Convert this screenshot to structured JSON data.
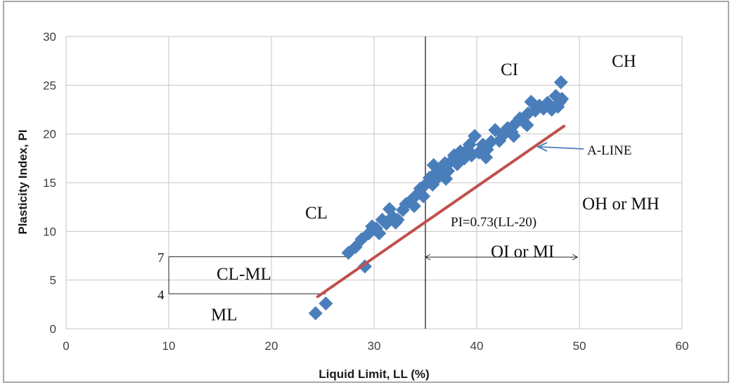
{
  "chart_data": {
    "type": "scatter",
    "title": "",
    "xlabel": "Liquid Limit, LL (%)",
    "ylabel": "Plasticity Index, PI",
    "xlim": [
      0,
      60
    ],
    "ylim": [
      0,
      30
    ],
    "xticks": [
      0,
      10,
      20,
      30,
      40,
      50,
      60
    ],
    "yticks": [
      0,
      5,
      10,
      15,
      20,
      25,
      30
    ],
    "grid": true,
    "marker_color": "#4a7ebb",
    "line_color": "#c0504d",
    "series": [
      {
        "points": [
          [
            24.3,
            1.6
          ],
          [
            25.3,
            2.6
          ],
          [
            29.1,
            6.4
          ],
          [
            27.5,
            7.8
          ],
          [
            28.2,
            8.4
          ],
          [
            28.8,
            9.2
          ],
          [
            29.5,
            9.8
          ],
          [
            30.2,
            10.3
          ],
          [
            30.8,
            11.2
          ],
          [
            29.8,
            10.5
          ],
          [
            30.5,
            9.8
          ],
          [
            31.2,
            10.8
          ],
          [
            31.8,
            11.5
          ],
          [
            32.3,
            11.2
          ],
          [
            32.8,
            12.2
          ],
          [
            33.1,
            12.8
          ],
          [
            33.6,
            13.2
          ],
          [
            33.9,
            12.6
          ],
          [
            34.2,
            13.8
          ],
          [
            34.5,
            14.4
          ],
          [
            34.8,
            13.6
          ],
          [
            35.1,
            14.9
          ],
          [
            35.4,
            15.5
          ],
          [
            35.7,
            14.8
          ],
          [
            36.0,
            16.0
          ],
          [
            36.3,
            15.6
          ],
          [
            36.6,
            16.4
          ],
          [
            36.9,
            17.0
          ],
          [
            37.2,
            16.2
          ],
          [
            37.5,
            17.2
          ],
          [
            37.8,
            17.8
          ],
          [
            38.1,
            16.9
          ],
          [
            38.4,
            18.2
          ],
          [
            38.8,
            17.5
          ],
          [
            39.1,
            18.4
          ],
          [
            39.5,
            17.8
          ],
          [
            39.8,
            19.8
          ],
          [
            40.2,
            18.1
          ],
          [
            40.6,
            18.9
          ],
          [
            41.0,
            18.4
          ],
          [
            41.4,
            19.2
          ],
          [
            41.8,
            20.4
          ],
          [
            42.2,
            19.3
          ],
          [
            42.6,
            19.9
          ],
          [
            43.0,
            20.6
          ],
          [
            43.4,
            20.2
          ],
          [
            43.8,
            21.1
          ],
          [
            44.2,
            21.6
          ],
          [
            44.6,
            21.2
          ],
          [
            45.0,
            22.1
          ],
          [
            45.3,
            23.3
          ],
          [
            45.7,
            22.4
          ],
          [
            46.1,
            22.9
          ],
          [
            46.5,
            22.6
          ],
          [
            46.9,
            23.2
          ],
          [
            47.3,
            22.5
          ],
          [
            47.7,
            23.9
          ],
          [
            48.1,
            23.3
          ],
          [
            48.3,
            23.6
          ],
          [
            48.2,
            25.3
          ],
          [
            47.9,
            22.8
          ],
          [
            32.1,
            10.9
          ],
          [
            31.5,
            12.3
          ],
          [
            35.8,
            16.8
          ],
          [
            37.0,
            15.4
          ],
          [
            39.3,
            18.9
          ],
          [
            40.9,
            17.6
          ],
          [
            43.6,
            19.8
          ],
          [
            44.9,
            20.9
          ]
        ]
      }
    ],
    "a_line": {
      "from": [
        24.5,
        3.3
      ],
      "to": [
        48.5,
        20.8
      ]
    },
    "labels": {
      "CI": "CI",
      "CH": "CH",
      "CL": "CL",
      "CL_ML": "CL-ML",
      "ML": "ML",
      "A_LINE": "A-LINE",
      "OH_MH": "OH or MH",
      "OI_MI": "OI or MI",
      "equation": "PI=0.73(LL-20)",
      "seven": "7",
      "four": "4"
    }
  }
}
